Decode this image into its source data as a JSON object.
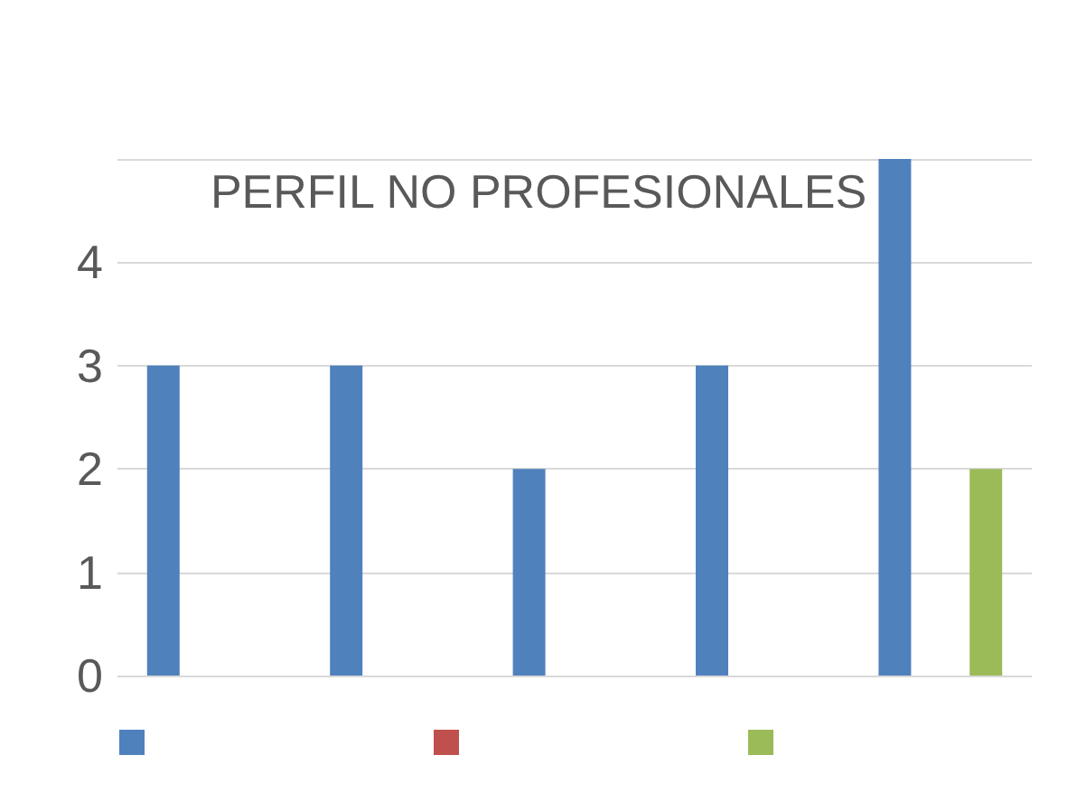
{
  "chart_data": {
    "type": "bar",
    "title": "PERFIL NO PROFESIONALES",
    "categories": [
      null,
      null,
      null,
      null,
      null
    ],
    "series": [
      {
        "color": "#4f81bd",
        "values": [
          3,
          3,
          2,
          3,
          5
        ]
      },
      {
        "color": "#c0504d",
        "values": [
          null,
          null,
          null,
          null,
          null
        ]
      },
      {
        "color": "#9bbb59",
        "values": [
          null,
          null,
          null,
          null,
          2
        ]
      }
    ],
    "ylim": [
      0,
      5
    ],
    "yticks": [
      0,
      1,
      2,
      3,
      4,
      {
        "value": 5,
        "label": null
      }
    ],
    "grid": "y"
  }
}
